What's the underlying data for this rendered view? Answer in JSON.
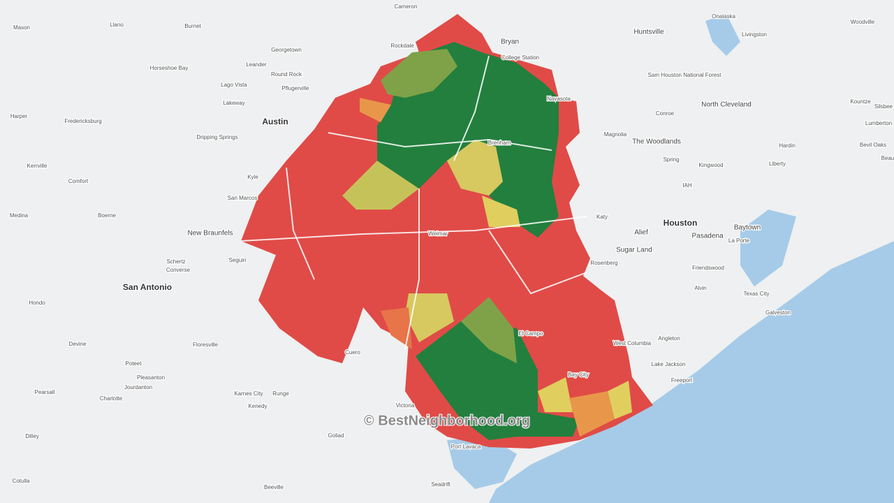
{
  "map": {
    "places": [
      "Cameron",
      "Mason",
      "Llano",
      "Burnet",
      "Georgetown",
      "Rockdale",
      "Bryan",
      "College Station",
      "Huntsville",
      "Onalaska",
      "Livingston",
      "Woodville",
      "Horseshoe Bay",
      "Leander",
      "Round Rock",
      "Pflugerville",
      "Lago Vista",
      "Lakeway",
      "Austin",
      "Harper",
      "Fredericksburg",
      "Dripping Springs",
      "Navasota",
      "Sam Houston National Forest",
      "North Cleveland",
      "Conroe",
      "Kountze",
      "Silsbee",
      "Lumberton",
      "Bevil Oaks",
      "Beau",
      "Hardin",
      "Magnolia",
      "The Woodlands",
      "Spring",
      "Kingwood",
      "Liberty",
      "Kerrville",
      "Comfort",
      "Kyle",
      "San Marcos",
      "IAH",
      "Medina",
      "Boerne",
      "New Braunfels",
      "Katy",
      "Houston",
      "Alief",
      "Pasadena",
      "Baytown",
      "La Porte",
      "Sugar Land",
      "Schertz",
      "Converse",
      "Seguin",
      "Rosenberg",
      "Friendswood",
      "San Antonio",
      "Alvin",
      "Texas City",
      "Galveston",
      "Hondo",
      "Devine",
      "Floresville",
      "Cuero",
      "Angleton",
      "West Columbia",
      "Lake Jackson",
      "Freeport",
      "Poteet",
      "Pleasanton",
      "Jourdanton",
      "Pearsall",
      "Charlotte",
      "Karnes City",
      "Runge",
      "Kenedy",
      "Victoria",
      "Dilley",
      "Goliad",
      "Port Lavaca",
      "Cotulla",
      "Beeville",
      "Seadrift",
      "Brenham",
      "Weimar",
      "Bay City",
      "El Campo"
    ],
    "watermark": "© BestNeighborhood.org"
  }
}
